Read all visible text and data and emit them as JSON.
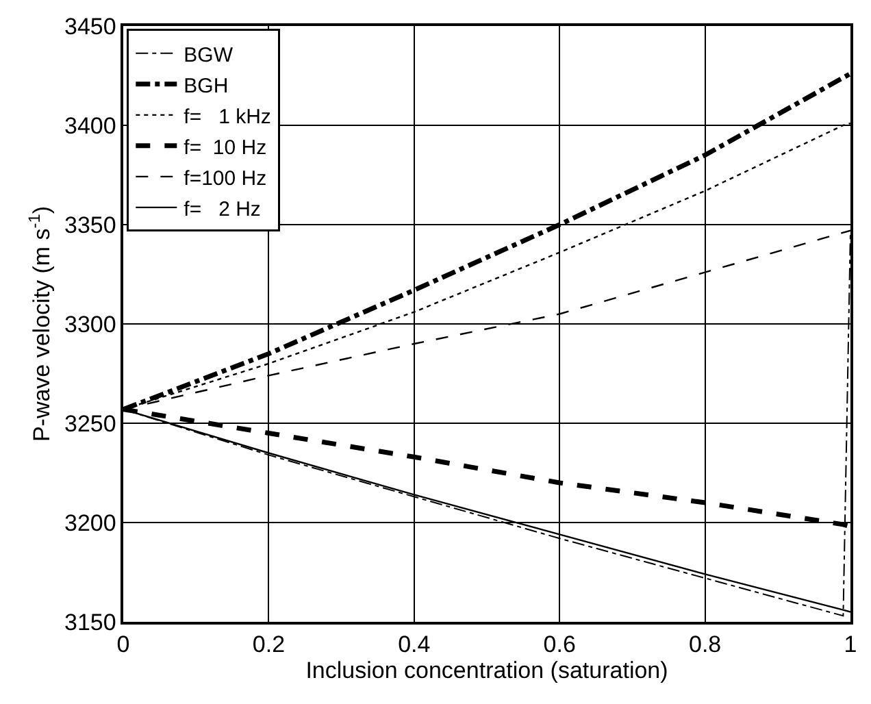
{
  "chart_data": {
    "type": "line",
    "xlabel": "Inclusion concentration (saturation)",
    "ylabel": "P-wave velocity (m s$^{-1}$)",
    "x": [
      0,
      0.2,
      0.4,
      0.6,
      0.8,
      0.99,
      1
    ],
    "series": [
      {
        "name": "BGW",
        "color": "#000000",
        "line_style": "dashdot",
        "values": [
          3257,
          3234,
          3213,
          3192,
          3172,
          3153,
          3347
        ]
      },
      {
        "name": "BGH",
        "color": "#000000",
        "line_style": "dashdot",
        "values": [
          3257,
          3285,
          3317,
          3350,
          3385,
          3424,
          3426
        ]
      },
      {
        "name": "f=   1 kHz",
        "color": "#000000",
        "line_style": "dotted",
        "values": [
          3257,
          3280,
          3306,
          3336,
          3367,
          3400,
          3401
        ]
      },
      {
        "name": "f=  10 Hz",
        "color": "#000000",
        "line_style": "dashed",
        "values": [
          3257,
          3245,
          3233,
          3220,
          3210,
          3199,
          3198
        ]
      },
      {
        "name": "f=100 Hz",
        "color": "#000000",
        "line_style": "dashed",
        "values": [
          3257,
          3274,
          3290,
          3305,
          3326,
          3346,
          3347
        ]
      },
      {
        "name": "f=   2 Hz",
        "color": "#000000",
        "line_style": "solid",
        "values": [
          3257,
          3235,
          3214,
          3194,
          3174,
          3156,
          3155
        ]
      }
    ],
    "xlim": [
      0,
      1
    ],
    "xticks": [
      0,
      0.2,
      0.4,
      0.6,
      0.8,
      1
    ],
    "ylim": [
      3150,
      3450
    ],
    "yticks": [
      3150,
      3200,
      3250,
      3300,
      3350,
      3400,
      3450
    ],
    "grid": true,
    "legend": "top left"
  }
}
